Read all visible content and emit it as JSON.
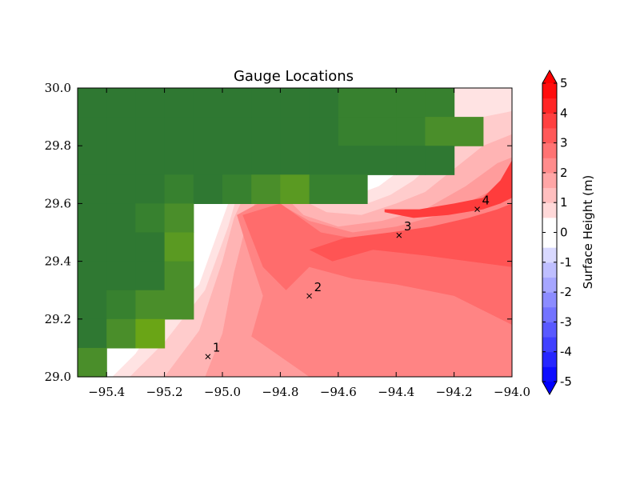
{
  "chart_data": {
    "type": "heatmap",
    "title": "Gauge Locations",
    "xlabel": "",
    "ylabel": "",
    "xlim": [
      -95.5,
      -94.0
    ],
    "ylim": [
      29.0,
      30.0
    ],
    "x_ticks": [
      {
        "value": -95.4,
        "label": "−95.4"
      },
      {
        "value": -95.2,
        "label": "−95.2"
      },
      {
        "value": -95.0,
        "label": "−95.0"
      },
      {
        "value": -94.8,
        "label": "−94.8"
      },
      {
        "value": -94.6,
        "label": "−94.6"
      },
      {
        "value": -94.4,
        "label": "−94.4"
      },
      {
        "value": -94.2,
        "label": "−94.2"
      },
      {
        "value": -94.0,
        "label": "−94.0"
      }
    ],
    "y_ticks": [
      {
        "value": 29.0,
        "label": "29.0"
      },
      {
        "value": 29.2,
        "label": "29.2"
      },
      {
        "value": 29.4,
        "label": "29.4"
      },
      {
        "value": 29.6,
        "label": "29.6"
      },
      {
        "value": 29.8,
        "label": "29.8"
      },
      {
        "value": 30.0,
        "label": "30.0"
      }
    ],
    "land_colors": [
      "#2f7832",
      "#37812f",
      "#4a8e2a",
      "#5a9a22",
      "#6aa516"
    ],
    "land_cells": [
      [
        0,
        0,
        0,
        0,
        0,
        0,
        0,
        0,
        0,
        1,
        1,
        1,
        1,
        -1,
        -1
      ],
      [
        0,
        0,
        0,
        0,
        0,
        0,
        0,
        0,
        0,
        1,
        1,
        1,
        2,
        2,
        -1
      ],
      [
        0,
        0,
        0,
        0,
        0,
        0,
        0,
        0,
        0,
        0,
        0,
        0,
        0,
        -1,
        -1
      ],
      [
        0,
        0,
        0,
        1,
        0,
        1,
        2,
        3,
        1,
        1,
        -1,
        -1,
        -1,
        -1,
        -1
      ],
      [
        0,
        0,
        1,
        2,
        -1,
        -1,
        -1,
        -1,
        -1,
        -1,
        -1,
        -1,
        -1,
        -1,
        -1
      ],
      [
        0,
        0,
        0,
        3,
        -1,
        -1,
        -1,
        -1,
        -1,
        -1,
        -1,
        -1,
        -1,
        -1,
        -1
      ],
      [
        0,
        0,
        0,
        2,
        -1,
        -1,
        -1,
        -1,
        -1,
        -1,
        -1,
        -1,
        -1,
        -1,
        -1
      ],
      [
        0,
        1,
        2,
        2,
        -1,
        -1,
        -1,
        -1,
        -1,
        -1,
        -1,
        -1,
        -1,
        -1,
        -1
      ],
      [
        0,
        2,
        4,
        -1,
        -1,
        -1,
        -1,
        -1,
        -1,
        -1,
        -1,
        -1,
        -1,
        -1,
        -1
      ],
      [
        2,
        -1,
        -1,
        -1,
        -1,
        -1,
        -1,
        -1,
        -1,
        -1,
        -1,
        -1,
        -1,
        -1,
        -1
      ]
    ],
    "surface_levels": [
      {
        "level": 0.5,
        "color": "#ffe3e3",
        "polygon": [
          [
            -95.45,
            29.0
          ],
          [
            -95.38,
            29.0
          ],
          [
            -95.3,
            29.08
          ],
          [
            -95.22,
            29.2
          ],
          [
            -95.08,
            29.32
          ],
          [
            -94.98,
            29.6
          ],
          [
            -94.9,
            29.74
          ],
          [
            -94.8,
            29.76
          ],
          [
            -94.7,
            29.7
          ],
          [
            -94.62,
            29.64
          ],
          [
            -94.54,
            29.63
          ],
          [
            -94.46,
            29.66
          ],
          [
            -94.38,
            29.72
          ],
          [
            -94.3,
            29.8
          ],
          [
            -94.22,
            29.86
          ],
          [
            -94.2,
            29.9
          ],
          [
            -94.24,
            29.94
          ],
          [
            -94.24,
            30.0
          ],
          [
            -94.0,
            30.0
          ],
          [
            -94.0,
            29.0
          ]
        ]
      },
      {
        "level": 1.0,
        "color": "#ffcccc",
        "polygon": [
          [
            -95.32,
            29.0
          ],
          [
            -95.2,
            29.12
          ],
          [
            -95.06,
            29.3
          ],
          [
            -94.98,
            29.52
          ],
          [
            -94.94,
            29.66
          ],
          [
            -94.86,
            29.74
          ],
          [
            -94.78,
            29.72
          ],
          [
            -94.7,
            29.66
          ],
          [
            -94.6,
            29.62
          ],
          [
            -94.5,
            29.6
          ],
          [
            -94.42,
            29.63
          ],
          [
            -94.34,
            29.68
          ],
          [
            -94.25,
            29.76
          ],
          [
            -94.16,
            29.84
          ],
          [
            -94.1,
            29.9
          ],
          [
            -94.0,
            29.92
          ],
          [
            -94.0,
            29.0
          ]
        ]
      },
      {
        "level": 1.5,
        "color": "#ffb4b4",
        "polygon": [
          [
            -95.2,
            29.0
          ],
          [
            -95.08,
            29.16
          ],
          [
            -95.0,
            29.4
          ],
          [
            -94.96,
            29.55
          ],
          [
            -94.9,
            29.68
          ],
          [
            -94.82,
            29.7
          ],
          [
            -94.74,
            29.62
          ],
          [
            -94.64,
            29.57
          ],
          [
            -94.52,
            29.56
          ],
          [
            -94.4,
            29.6
          ],
          [
            -94.3,
            29.64
          ],
          [
            -94.2,
            29.72
          ],
          [
            -94.1,
            29.8
          ],
          [
            -94.0,
            29.84
          ],
          [
            -94.0,
            29.0
          ]
        ]
      },
      {
        "level": 2.0,
        "color": "#ff9c9c",
        "polygon": [
          [
            -95.06,
            29.0
          ],
          [
            -95.0,
            29.15
          ],
          [
            -94.96,
            29.36
          ],
          [
            -94.92,
            29.52
          ],
          [
            -94.88,
            29.62
          ],
          [
            -94.8,
            29.64
          ],
          [
            -94.72,
            29.56
          ],
          [
            -94.6,
            29.52
          ],
          [
            -94.45,
            29.54
          ],
          [
            -94.3,
            29.58
          ],
          [
            -94.16,
            29.66
          ],
          [
            -94.05,
            29.74
          ],
          [
            -94.0,
            29.76
          ],
          [
            -94.0,
            29.0
          ]
        ]
      },
      {
        "level": 2.5,
        "color": "#ff8484",
        "polygon": [
          [
            -94.7,
            29.0
          ],
          [
            -94.9,
            29.14
          ],
          [
            -94.86,
            29.28
          ],
          [
            -94.9,
            29.4
          ],
          [
            -94.95,
            29.56
          ],
          [
            -94.84,
            29.62
          ],
          [
            -94.7,
            29.54
          ],
          [
            -94.55,
            29.5
          ],
          [
            -94.4,
            29.52
          ],
          [
            -94.25,
            29.56
          ],
          [
            -94.12,
            29.62
          ],
          [
            -94.0,
            29.68
          ],
          [
            -94.0,
            29.0
          ]
        ]
      },
      {
        "level": 3.0,
        "color": "#ff6c6c",
        "polygon": [
          [
            -94.0,
            29.18
          ],
          [
            -94.2,
            29.28
          ],
          [
            -94.4,
            29.32
          ],
          [
            -94.55,
            29.34
          ],
          [
            -94.7,
            29.38
          ],
          [
            -94.78,
            29.3
          ],
          [
            -94.86,
            29.38
          ],
          [
            -94.93,
            29.56
          ],
          [
            -94.8,
            29.6
          ],
          [
            -94.66,
            29.5
          ],
          [
            -94.5,
            29.47
          ],
          [
            -94.35,
            29.48
          ],
          [
            -94.2,
            29.52
          ],
          [
            -94.05,
            29.58
          ],
          [
            -94.0,
            29.6
          ]
        ]
      },
      {
        "level": 3.5,
        "color": "#ff5454",
        "polygon": [
          [
            -94.0,
            29.38
          ],
          [
            -94.15,
            29.4
          ],
          [
            -94.3,
            29.42
          ],
          [
            -94.48,
            29.44
          ],
          [
            -94.62,
            29.4
          ],
          [
            -94.7,
            29.44
          ],
          [
            -94.58,
            29.48
          ],
          [
            -94.42,
            29.5
          ],
          [
            -94.28,
            29.52
          ],
          [
            -94.15,
            29.55
          ],
          [
            -94.05,
            29.58
          ],
          [
            -94.0,
            29.6
          ]
        ]
      },
      {
        "level": 4.0,
        "color": "#ff3c3c",
        "polygon": [
          [
            -94.44,
            29.57
          ],
          [
            -94.34,
            29.55
          ],
          [
            -94.22,
            29.56
          ],
          [
            -94.1,
            29.58
          ],
          [
            -94.04,
            29.6
          ],
          [
            -94.0,
            29.62
          ],
          [
            -94.0,
            29.75
          ],
          [
            -94.04,
            29.68
          ],
          [
            -94.1,
            29.62
          ],
          [
            -94.2,
            29.6
          ],
          [
            -94.32,
            29.58
          ],
          [
            -94.44,
            29.58
          ]
        ]
      }
    ],
    "gauges": [
      {
        "label": "1",
        "x": -95.05,
        "y": 29.07
      },
      {
        "label": "2",
        "x": -94.7,
        "y": 29.28
      },
      {
        "label": "3",
        "x": -94.39,
        "y": 29.49
      },
      {
        "label": "4",
        "x": -94.12,
        "y": 29.58
      }
    ],
    "colorbar": {
      "label": "Surface Height (m)",
      "min": -5,
      "max": 5,
      "extend": "both",
      "below_color": "#0000ff",
      "above_color": "#ff0000",
      "tick_labels": [
        {
          "value": 5,
          "label": "5"
        },
        {
          "value": 4,
          "label": "4"
        },
        {
          "value": 3,
          "label": "3"
        },
        {
          "value": 2,
          "label": "2"
        },
        {
          "value": 1,
          "label": "1"
        },
        {
          "value": 0,
          "label": "0"
        },
        {
          "value": -1,
          "label": "-1"
        },
        {
          "value": -2,
          "label": "-2"
        },
        {
          "value": -3,
          "label": "-3"
        },
        {
          "value": -4,
          "label": "-4"
        },
        {
          "value": -5,
          "label": "-5"
        }
      ]
    }
  }
}
